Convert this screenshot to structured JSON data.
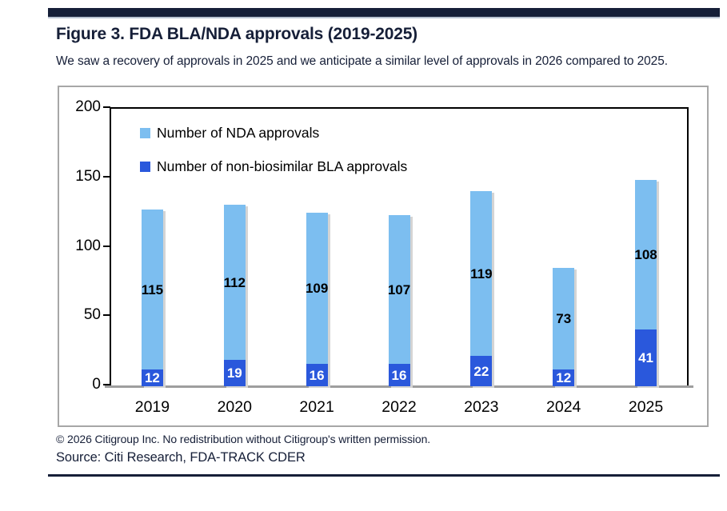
{
  "page": {
    "title": "Figure 3. FDA BLA/NDA approvals (2019-2025)",
    "subtitle": "We saw a recovery of approvals in 2025 and we anticipate a similar level of approvals in 2026 compared to 2025.",
    "copyright": "© 2026 Citigroup Inc. No redistribution without Citigroup's written permission.",
    "source": "Source: Citi Research, FDA-TRACK CDER",
    "accent_navy": "#161f38"
  },
  "chart_data": {
    "type": "bar",
    "stacked": true,
    "title": "",
    "categories": [
      "2019",
      "2020",
      "2021",
      "2022",
      "2023",
      "2024",
      "2025"
    ],
    "series": [
      {
        "name": "Number of NDA approvals",
        "position": "top",
        "color": "#7cbef0",
        "label_color": "#000000",
        "values": [
          115,
          112,
          109,
          107,
          119,
          73,
          108
        ]
      },
      {
        "name": "Number of non-biosimilar BLA approvals",
        "position": "bottom",
        "color": "#2a58dc",
        "label_color": "#ffffff",
        "values": [
          12,
          19,
          16,
          16,
          22,
          12,
          41
        ]
      }
    ],
    "totals": [
      127,
      131,
      125,
      123,
      141,
      85,
      149
    ],
    "ylim": [
      0,
      200
    ],
    "yticks": [
      0,
      50,
      100,
      150,
      200
    ],
    "grid": false,
    "legend_position": "top-left inside plot",
    "axis_colors": {
      "frame": "#000000",
      "baseline": "#9e9e9e"
    }
  }
}
